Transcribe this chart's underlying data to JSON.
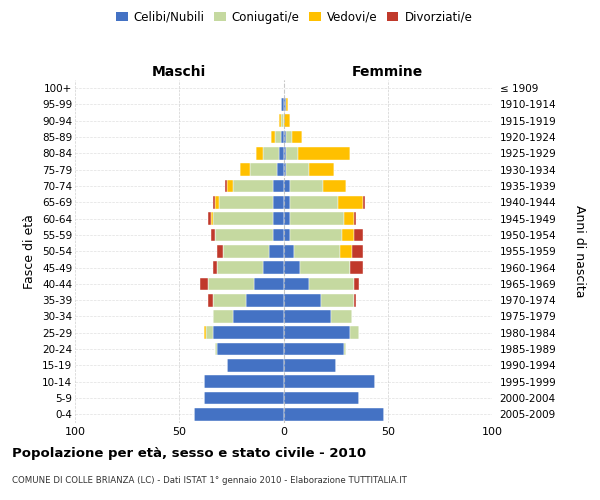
{
  "age_groups": [
    "0-4",
    "5-9",
    "10-14",
    "15-19",
    "20-24",
    "25-29",
    "30-34",
    "35-39",
    "40-44",
    "45-49",
    "50-54",
    "55-59",
    "60-64",
    "65-69",
    "70-74",
    "75-79",
    "80-84",
    "85-89",
    "90-94",
    "95-99",
    "100+"
  ],
  "birth_years": [
    "2005-2009",
    "2000-2004",
    "1995-1999",
    "1990-1994",
    "1985-1989",
    "1980-1984",
    "1975-1979",
    "1970-1974",
    "1965-1969",
    "1960-1964",
    "1955-1959",
    "1950-1954",
    "1945-1949",
    "1940-1944",
    "1935-1939",
    "1930-1934",
    "1925-1929",
    "1920-1924",
    "1915-1919",
    "1910-1914",
    "≤ 1909"
  ],
  "maschi": {
    "celibi": [
      43,
      38,
      38,
      27,
      32,
      34,
      24,
      18,
      14,
      10,
      7,
      5,
      5,
      5,
      5,
      3,
      2,
      1,
      0,
      1,
      0
    ],
    "coniugati": [
      0,
      0,
      0,
      0,
      1,
      3,
      10,
      16,
      22,
      22,
      22,
      28,
      29,
      26,
      19,
      13,
      8,
      3,
      1,
      0,
      0
    ],
    "vedovi": [
      0,
      0,
      0,
      0,
      0,
      1,
      0,
      0,
      0,
      0,
      0,
      0,
      1,
      2,
      3,
      5,
      3,
      2,
      1,
      0,
      0
    ],
    "divorziati": [
      0,
      0,
      0,
      0,
      0,
      0,
      0,
      2,
      4,
      2,
      3,
      2,
      1,
      1,
      1,
      0,
      0,
      0,
      0,
      0,
      0
    ]
  },
  "femmine": {
    "nubili": [
      48,
      36,
      44,
      25,
      29,
      32,
      23,
      18,
      12,
      8,
      5,
      3,
      3,
      3,
      3,
      1,
      1,
      1,
      0,
      1,
      0
    ],
    "coniugate": [
      0,
      0,
      0,
      0,
      1,
      4,
      10,
      16,
      22,
      24,
      22,
      25,
      26,
      23,
      16,
      11,
      6,
      3,
      0,
      0,
      0
    ],
    "vedove": [
      0,
      0,
      0,
      0,
      0,
      0,
      0,
      0,
      0,
      0,
      6,
      6,
      5,
      12,
      11,
      12,
      25,
      5,
      3,
      1,
      0
    ],
    "divorziate": [
      0,
      0,
      0,
      0,
      0,
      0,
      0,
      1,
      2,
      6,
      5,
      4,
      1,
      1,
      0,
      0,
      0,
      0,
      0,
      0,
      0
    ]
  },
  "colors": {
    "celibi_nubili": "#4472c4",
    "coniugati": "#c5d9a0",
    "vedovi": "#ffc000",
    "divorziati": "#c0392b"
  },
  "xlim": 100,
  "title": "Popolazione per età, sesso e stato civile - 2010",
  "subtitle": "COMUNE DI COLLE BRIANZA (LC) - Dati ISTAT 1° gennaio 2010 - Elaborazione TUTTITALIA.IT",
  "ylabel_left": "Fasce di età",
  "ylabel_right": "Anni di nascita",
  "xlabel_left": "Maschi",
  "xlabel_right": "Femmine",
  "bg_color": "#ffffff",
  "grid_color": "#cccccc"
}
